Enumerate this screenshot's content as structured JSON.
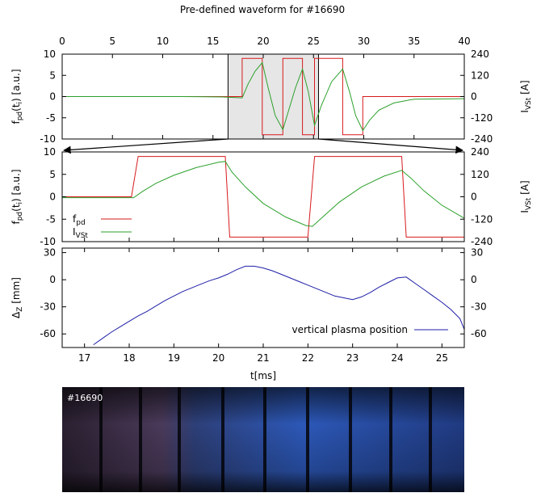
{
  "title": "Pre-defined waveform for #16690",
  "colors": {
    "fpd": "#d7191c",
    "ivst": "#2ca02c",
    "z": "#1f1fa8",
    "zoom": "#e6e6e6"
  },
  "photo": {
    "label": "#16690"
  },
  "chart_data": [
    {
      "id": "overview",
      "type": "line",
      "xlabel_top_ticks": [
        "0",
        "5",
        "10",
        "15",
        "20",
        "25",
        "30",
        "35",
        "40"
      ],
      "xlim": [
        0,
        40
      ],
      "ylim": [
        -10,
        10
      ],
      "y2lim": [
        -240,
        240
      ],
      "y_ticks": [
        "10",
        "5",
        "0",
        "-5",
        "-10"
      ],
      "y2_ticks": [
        "240",
        "120",
        "0",
        "-120",
        "-240"
      ],
      "ylabel": "f",
      "ylabel_sub": "pd",
      "ylabel_tail": "(t",
      "ylabel_sub2": "i",
      "ylabel_end": ") [a.u.]",
      "y2label": "I",
      "y2label_sub": "VSt",
      "y2label_end": " [A]",
      "zoom_range": [
        16.5,
        25.5
      ],
      "series": [
        {
          "key": "fpd",
          "x": [
            0,
            17.9,
            17.9,
            19.9,
            19.9,
            21.95,
            21.95,
            23.9,
            23.9,
            25.1,
            25.1,
            27.9,
            27.9,
            29.9,
            29.9,
            40
          ],
          "y": [
            0,
            0,
            9,
            9,
            -9,
            -9,
            9,
            9,
            -9,
            -9,
            9,
            9,
            -9,
            -9,
            0,
            0
          ]
        },
        {
          "key": "ivst",
          "x": [
            0,
            12,
            16,
            17.9,
            18.5,
            19.2,
            19.9,
            20.5,
            21.2,
            21.95,
            22.5,
            23.2,
            23.9,
            24.5,
            25.1,
            25.8,
            26.8,
            27.9,
            28.6,
            29.2,
            29.9,
            30.6,
            31.5,
            33,
            35,
            40
          ],
          "y": [
            0,
            0,
            -0.1,
            -0.3,
            3.0,
            6.0,
            8.0,
            2.0,
            -4.5,
            -7.8,
            -3.5,
            2.0,
            6.5,
            1.0,
            -6.8,
            -2.0,
            3.5,
            6.5,
            1.0,
            -4.5,
            -8.0,
            -5.5,
            -3.2,
            -1.5,
            -0.6,
            -0.5
          ]
        }
      ]
    },
    {
      "id": "zoom",
      "type": "line",
      "xlim": [
        16.5,
        25.5
      ],
      "ylim": [
        -10,
        10
      ],
      "y2lim": [
        -240,
        240
      ],
      "y_ticks": [
        "10",
        "5",
        "0",
        "-5",
        "-10"
      ],
      "y2_ticks": [
        "240",
        "120",
        "0",
        "-120",
        "-240"
      ],
      "ylabel": "f",
      "ylabel_sub": "pd",
      "ylabel_tail": "(t",
      "ylabel_sub2": "i",
      "ylabel_end": ") [a.u.]",
      "y2label": "I",
      "y2label_sub": "VSt",
      "y2label_end": " [A]",
      "legend": [
        {
          "key": "fpd",
          "label": "f",
          "sub": "pd"
        },
        {
          "key": "ivst",
          "label": "I",
          "sub": "VSt"
        }
      ],
      "series": [
        {
          "key": "fpd",
          "x": [
            16.5,
            18.05,
            18.2,
            20.15,
            20.25,
            22.0,
            22.15,
            24.1,
            24.2,
            25.5
          ],
          "y": [
            0,
            0,
            9,
            9,
            -9,
            -9,
            9,
            9,
            -9,
            -9
          ]
        },
        {
          "key": "ivst",
          "x": [
            16.5,
            18.1,
            18.3,
            18.6,
            19.0,
            19.5,
            20.0,
            20.15,
            20.3,
            20.6,
            21.0,
            21.5,
            21.95,
            22.1,
            22.3,
            22.7,
            23.2,
            23.7,
            24.1,
            24.3,
            24.6,
            25.0,
            25.5
          ],
          "y": [
            -0.2,
            -0.2,
            1.2,
            3.0,
            4.8,
            6.5,
            7.7,
            7.9,
            5.5,
            2.2,
            -1.5,
            -4.5,
            -6.4,
            -6.6,
            -4.8,
            -1.2,
            2.2,
            4.6,
            5.9,
            4.2,
            1.3,
            -1.9,
            -4.8
          ]
        }
      ]
    },
    {
      "id": "position",
      "type": "line",
      "xlim": [
        16.5,
        25.5
      ],
      "x_ticks": [
        "17",
        "18",
        "19",
        "20",
        "21",
        "22",
        "23",
        "24",
        "25"
      ],
      "xlabel": "t[ms]",
      "ylim": [
        -75,
        35
      ],
      "y_ticks": [
        "30",
        "0",
        "-30",
        "-60"
      ],
      "y2_ticks": [
        "30",
        "0",
        "-30",
        "-60"
      ],
      "ylabel": "Δ",
      "ylabel_sub": "Z",
      "ylabel_end": " [mm]",
      "legend": [
        {
          "key": "z",
          "label": "vertical plasma position"
        }
      ],
      "series": [
        {
          "key": "z",
          "x": [
            17.2,
            17.4,
            17.6,
            17.8,
            18.0,
            18.2,
            18.4,
            18.6,
            18.8,
            19.0,
            19.2,
            19.4,
            19.6,
            19.8,
            20.0,
            20.2,
            20.4,
            20.6,
            20.8,
            21.0,
            21.2,
            21.4,
            21.6,
            21.8,
            22.0,
            22.2,
            22.4,
            22.6,
            22.8,
            23.0,
            23.2,
            23.4,
            23.6,
            23.8,
            24.0,
            24.2,
            24.4,
            24.6,
            24.8,
            25.0,
            25.2,
            25.4,
            25.5
          ],
          "y": [
            -72,
            -65,
            -58,
            -52,
            -46,
            -40,
            -35,
            -29,
            -23,
            -18,
            -13,
            -9,
            -5,
            -1,
            2,
            6,
            11,
            15,
            15,
            13,
            10,
            6,
            2,
            -2,
            -6,
            -10,
            -14,
            -18,
            -20,
            -22,
            -19,
            -14,
            -8,
            -3,
            2,
            3,
            -4,
            -11,
            -18,
            -25,
            -33,
            -43,
            -55
          ]
        }
      ]
    }
  ]
}
